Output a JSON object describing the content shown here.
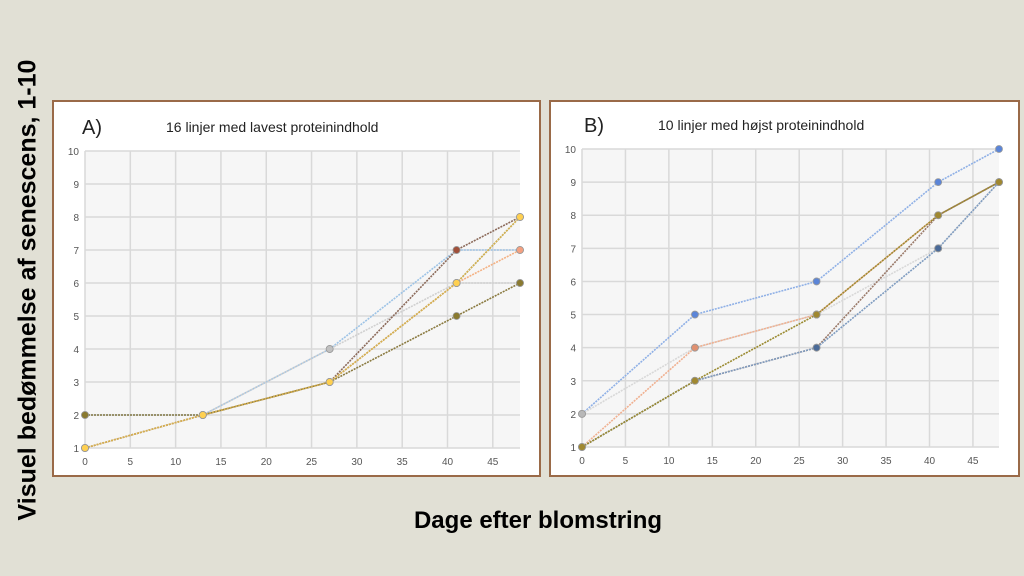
{
  "ylabel": "Visuel bedømmelse af senescens, 1-10",
  "xlabel": "Dage efter blomstring",
  "chart_data": [
    {
      "type": "line",
      "panel": "A)",
      "title": "16 linjer med lavest proteinindhold",
      "x": [
        0,
        13,
        27,
        41,
        48
      ],
      "xlim": [
        0,
        48
      ],
      "ylim": [
        1,
        10
      ],
      "xticks": [
        0,
        5,
        10,
        15,
        20,
        25,
        30,
        35,
        40,
        45
      ],
      "yticks": [
        1,
        2,
        3,
        4,
        5,
        6,
        7,
        8,
        9,
        10
      ],
      "grid": true,
      "series": [
        {
          "color": "#9dc3e6",
          "values": [
            2,
            2,
            4,
            7,
            7
          ]
        },
        {
          "color": "#d0d0d0",
          "values": [
            1,
            2,
            4,
            6,
            6
          ]
        },
        {
          "color": "#8b6a5a",
          "values": [
            1,
            2,
            3,
            7,
            8
          ]
        },
        {
          "color": "#9aa070",
          "values": [
            1,
            2,
            3,
            6,
            8
          ]
        },
        {
          "color": "#f4b183",
          "values": [
            1,
            2,
            3,
            6,
            7
          ]
        },
        {
          "color": "#8a7a40",
          "values": [
            2,
            2,
            3,
            5,
            6
          ]
        },
        {
          "color": "#d4b050",
          "values": [
            1,
            2,
            3,
            6,
            8
          ]
        }
      ],
      "marker_colors": [
        "#4a6088",
        "#c0c0c0",
        "#a0503a",
        "#9aa070",
        "#f4a080",
        "#8a7a30",
        "#ffd050"
      ]
    },
    {
      "type": "line",
      "panel": "B)",
      "title": "10 linjer med højst proteinindhold",
      "x": [
        0,
        13,
        27,
        41,
        48
      ],
      "xlim": [
        0,
        48
      ],
      "ylim": [
        1,
        10
      ],
      "xticks": [
        0,
        5,
        10,
        15,
        20,
        25,
        30,
        35,
        40,
        45
      ],
      "yticks": [
        1,
        2,
        3,
        4,
        5,
        6,
        7,
        8,
        9,
        10
      ],
      "grid": true,
      "series": [
        {
          "color": "#8fb0e6",
          "values": [
            2,
            5,
            6,
            9,
            10
          ]
        },
        {
          "color": "#d8d8d8",
          "values": [
            2,
            4,
            5,
            7,
            9
          ]
        },
        {
          "color": "#f0b090",
          "values": [
            1,
            4,
            5,
            8,
            9
          ]
        },
        {
          "color": "#9a7a6a",
          "values": [
            1,
            3,
            4,
            8,
            9
          ]
        },
        {
          "color": "#7f9cc0",
          "values": [
            1,
            3,
            4,
            7,
            9
          ]
        },
        {
          "color": "#9a8a30",
          "values": [
            1,
            3,
            5,
            8,
            9
          ]
        }
      ],
      "marker_colors": [
        "#5b85d8",
        "#b8b8b8",
        "#e09070",
        "#b05a40",
        "#4a6a98",
        "#a08830"
      ]
    }
  ]
}
